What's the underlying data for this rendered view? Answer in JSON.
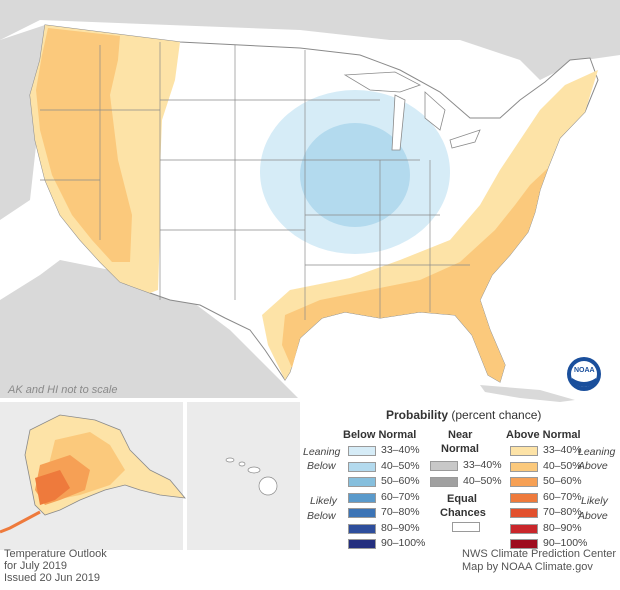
{
  "note_scale": "AK and HI not to scale",
  "legend": {
    "title_bold": "Probability",
    "title_rest": " (percent chance)",
    "below_header": "Below Normal",
    "near_header_1": "Near",
    "near_header_2": "Normal",
    "above_header": "Above Normal",
    "leaning": "Leaning",
    "below_word": "Below",
    "above_word": "Above",
    "likely": "Likely",
    "equal_1": "Equal",
    "equal_2": "Chances",
    "below_bins": [
      {
        "label": "33–40%",
        "color": "#d6ecf7"
      },
      {
        "label": "40–50%",
        "color": "#b3daee"
      },
      {
        "label": "50–60%",
        "color": "#86bfdd"
      },
      {
        "label": "60–70%",
        "color": "#5a9acb"
      },
      {
        "label": "70–80%",
        "color": "#3c74b6"
      },
      {
        "label": "80–90%",
        "color": "#2e4e9c"
      },
      {
        "label": "90–100%",
        "color": "#242f7f"
      }
    ],
    "near_bins": [
      {
        "label": "33–40%",
        "color": "#c8c8c8"
      },
      {
        "label": "40–50%",
        "color": "#a0a0a0"
      }
    ],
    "above_bins": [
      {
        "label": "33–40%",
        "color": "#fde3a7"
      },
      {
        "label": "40–50%",
        "color": "#fbc97c"
      },
      {
        "label": "50–60%",
        "color": "#f6a055"
      },
      {
        "label": "60–70%",
        "color": "#ee7a3c"
      },
      {
        "label": "70–80%",
        "color": "#e2502d"
      },
      {
        "label": "80–90%",
        "color": "#c9262b"
      },
      {
        "label": "90–100%",
        "color": "#9e0c1e"
      }
    ]
  },
  "footer": {
    "left_1": "Temperature Outlook",
    "left_2": "for July 2019",
    "left_3": "Issued 20 Jun 2019",
    "right_1": "NWS Climate Prediction Center",
    "right_2": "Map by NOAA Climate.gov"
  },
  "logo_text": "NOAA",
  "colors": {
    "land_outside": "#d9d9d9",
    "water": "#ffffff",
    "border": "#8a8a8a"
  }
}
